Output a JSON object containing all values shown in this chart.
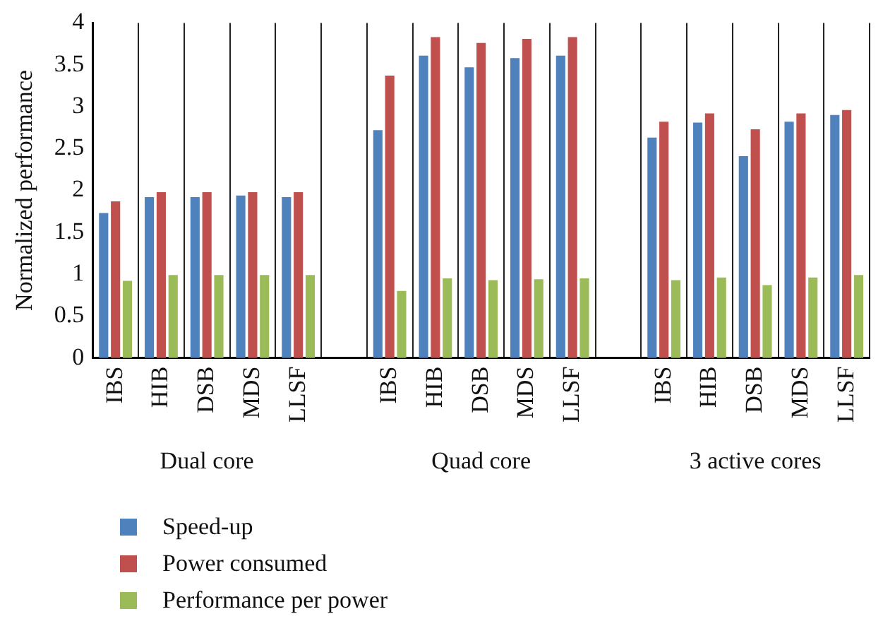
{
  "chart_data": {
    "type": "bar",
    "ylabel": "Normalized performance",
    "categories": [
      "IBS",
      "HIB",
      "DSB",
      "MDS",
      "LLSF",
      null,
      "IBS",
      "HIB",
      "DSB",
      "MDS",
      "LLSF",
      null,
      "IBS",
      "HIB",
      "DSB",
      "MDS",
      "LLSF"
    ],
    "series": [
      {
        "name": "Speed-up",
        "color": "#4f81bd",
        "values": [
          1.73,
          1.92,
          1.92,
          1.94,
          1.92,
          null,
          2.72,
          3.61,
          3.47,
          3.58,
          3.61,
          null,
          2.63,
          2.81,
          2.41,
          2.82,
          2.9
        ]
      },
      {
        "name": "Power consumed",
        "color": "#c0504d",
        "values": [
          1.87,
          1.98,
          1.98,
          1.98,
          1.98,
          null,
          3.37,
          3.83,
          3.76,
          3.81,
          3.83,
          null,
          2.82,
          2.92,
          2.73,
          2.92,
          2.96
        ]
      },
      {
        "name": "Performance per power",
        "color": "#9bbb59",
        "values": [
          0.92,
          0.99,
          0.99,
          0.99,
          0.99,
          null,
          0.8,
          0.95,
          0.93,
          0.94,
          0.95,
          null,
          0.93,
          0.96,
          0.87,
          0.96,
          0.99
        ]
      }
    ],
    "annotations": [
      "Dual core",
      "Quad core",
      "3 active cores"
    ],
    "ylim": [
      0,
      4
    ],
    "yticks": [
      0,
      0.5,
      1,
      1.5,
      2,
      2.5,
      3,
      3.5,
      4
    ],
    "grid": "x",
    "legend": "bottom left"
  }
}
